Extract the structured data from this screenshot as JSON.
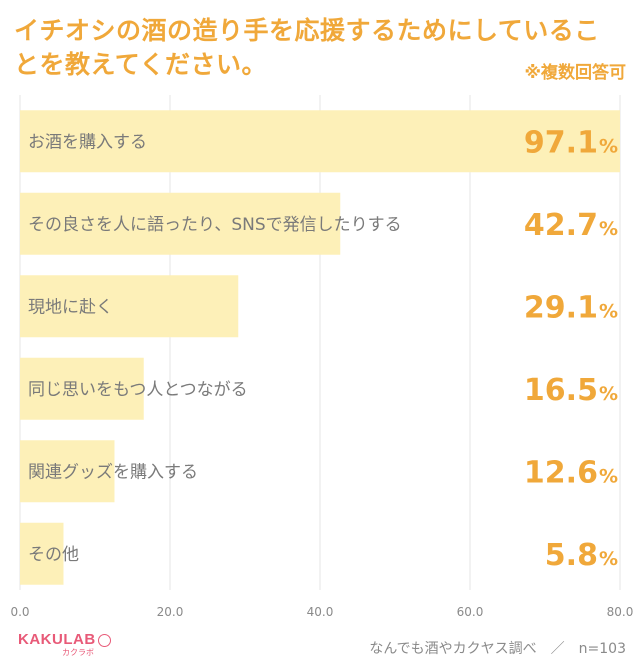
{
  "header": {
    "title": "イチオシの酒の造り手を応援するためにしていることを教えてください。",
    "note": "※複数回答可"
  },
  "chart_data": {
    "type": "bar",
    "orientation": "horizontal",
    "categories": [
      "お酒を購入する",
      "その良さを人に語ったり、SNSで発信したりする",
      "現地に赴く",
      "同じ思いをもつ人とつながる",
      "関連グッズを購入する",
      "その他"
    ],
    "values": [
      97.1,
      42.7,
      29.1,
      16.5,
      12.6,
      5.8
    ],
    "value_labels": [
      "97.1",
      "42.7",
      "29.1",
      "16.5",
      "12.6",
      "5.8"
    ],
    "unit": "%",
    "xlim": [
      0,
      80
    ],
    "xticks": [
      "0.0",
      "20.0",
      "40.0",
      "60.0",
      "80.0"
    ],
    "grid": true,
    "bar_color": "#fdf0b8",
    "accent_color": "#f0a83a"
  },
  "footer": {
    "logo_main": "KAKULAB",
    "logo_sub": "カクラボ",
    "source": "なんでも酒やカクヤス調べ　／　n=103"
  }
}
